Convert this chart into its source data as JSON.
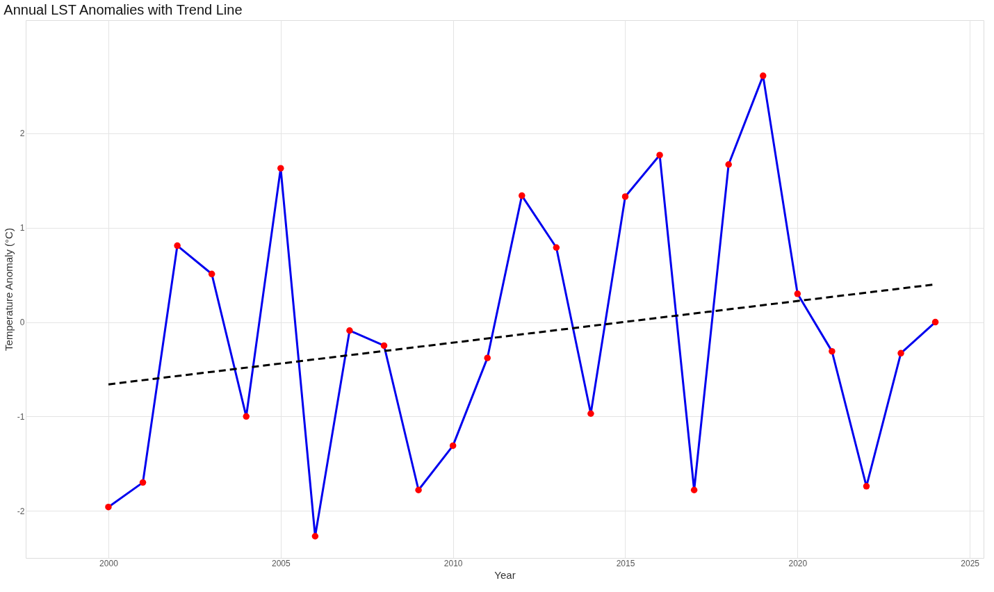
{
  "chart_data": {
    "type": "line",
    "title": "Annual LST Anomalies with Trend Line",
    "xlabel": "Year",
    "ylabel": "Temperature Anomaly (°C)",
    "x": [
      2000,
      2001,
      2002,
      2003,
      2004,
      2005,
      2006,
      2007,
      2008,
      2009,
      2010,
      2011,
      2012,
      2013,
      2014,
      2015,
      2016,
      2017,
      2018,
      2019,
      2020,
      2021,
      2022,
      2023,
      2024
    ],
    "series": [
      {
        "color": "#0000ee",
        "marker": "circle",
        "colors": [
          "#ff0000",
          "#ff0000",
          "#ff0000",
          "#ff0000",
          "#ff0000",
          "#ff0000",
          "#ff0000",
          "#ff0000",
          "#ff0000",
          "#ff0000",
          "#ff0000",
          "#ff0000",
          "#ff0000",
          "#ff0000",
          "#ff0000",
          "#ff0000",
          "#ff0000",
          "#ff0000",
          "#ff0000",
          "#ff0000",
          "#ff0000",
          "#ff0000",
          "#ff0000",
          "#ff0000",
          "#ff0000"
        ],
        "values": [
          -1.96,
          -1.7,
          0.81,
          0.51,
          -1.0,
          1.63,
          -2.27,
          -0.09,
          -0.25,
          -1.78,
          -1.31,
          -0.38,
          1.34,
          0.79,
          -0.97,
          1.33,
          1.77,
          -1.78,
          1.67,
          2.61,
          0.3,
          -0.31,
          -1.74,
          -0.33,
          0.0
        ]
      },
      {
        "type": "line",
        "color": "#000000",
        "line_style": "dashed",
        "marker": "none",
        "x": [
          2000,
          2024
        ],
        "values": [
          -0.66,
          0.4
        ]
      }
    ],
    "xlim": [
      1997.6,
      2025.4
    ],
    "ylim": [
      -2.5,
      3.2
    ],
    "xticks": [
      2000,
      2005,
      2010,
      2015,
      2020,
      2025
    ],
    "yticks": [
      -2,
      -1,
      0,
      1,
      2
    ],
    "grid": true
  }
}
